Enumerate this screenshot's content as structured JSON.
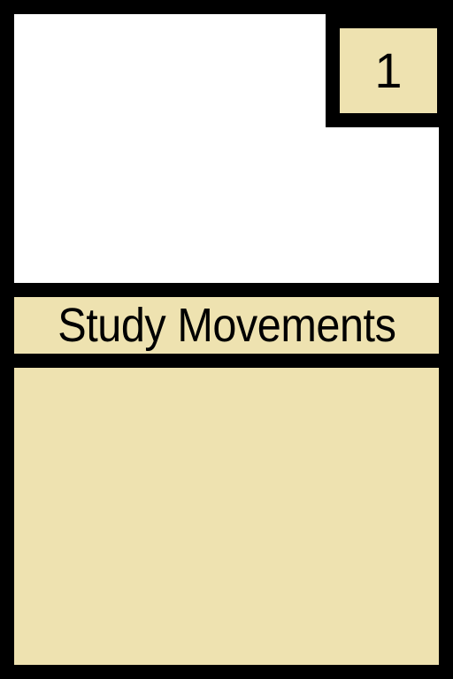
{
  "card": {
    "cost": "1",
    "title": "Study Movements",
    "rules_text": ""
  },
  "colors": {
    "border": "#000000",
    "art_background": "#ffffff",
    "parchment": "#eee2b0",
    "text": "#000000"
  }
}
